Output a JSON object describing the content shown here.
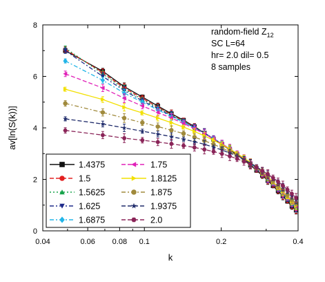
{
  "chart_data": {
    "type": "line",
    "title": "",
    "xlabel": "k",
    "ylabel": "av[ln(S(k))]",
    "xscale": "log",
    "xlim": [
      0.04,
      0.4
    ],
    "ylim": [
      0,
      8
    ],
    "x_ticks": [
      {
        "value": 0.04,
        "label": "0.04"
      },
      {
        "value": 0.06,
        "label": "0.06"
      },
      {
        "value": 0.08,
        "label": "0.08"
      },
      {
        "value": 0.1,
        "label": "0.1"
      },
      {
        "value": 0.2,
        "label": "0.2"
      },
      {
        "value": 0.4,
        "label": "0.4"
      }
    ],
    "y_ticks": [
      {
        "value": 0,
        "label": "0"
      },
      {
        "value": 2,
        "label": "2"
      },
      {
        "value": 4,
        "label": "4"
      },
      {
        "value": 6,
        "label": "6"
      },
      {
        "value": 8,
        "label": "8"
      }
    ],
    "annotations": {
      "line1": "random-field Z",
      "line1_sub": "12",
      "line2": "SC  L=64",
      "line3": "hr= 2.0  dil= 0.5",
      "line4": "8 samples"
    },
    "legend_position": "bottom-left",
    "grid": false,
    "x": [
      0.049,
      0.0687,
      0.0834,
      0.0982,
      0.1129,
      0.1276,
      0.1424,
      0.1571,
      0.1718,
      0.1866,
      0.2013,
      0.216,
      0.2307,
      0.2455,
      0.2602,
      0.2749,
      0.2897,
      0.3044,
      0.3191,
      0.3339,
      0.3486,
      0.3633,
      0.3781,
      0.3928
    ],
    "series": [
      {
        "name": "1.4375",
        "color": "#111111",
        "marker": "square",
        "dash": "solid",
        "values": [
          7.0,
          6.2,
          5.6,
          5.2,
          4.85,
          4.55,
          4.3,
          4.05,
          3.8,
          3.55,
          3.35,
          3.15,
          2.95,
          2.75,
          2.55,
          2.35,
          2.15,
          1.95,
          1.75,
          1.55,
          1.35,
          1.15,
          0.95,
          0.8
        ]
      },
      {
        "name": "1.5",
        "color": "#e32020",
        "marker": "circle",
        "dash": "dash",
        "values": [
          7.05,
          6.15,
          5.55,
          5.15,
          4.8,
          4.52,
          4.27,
          4.03,
          3.8,
          3.57,
          3.36,
          3.16,
          2.97,
          2.77,
          2.58,
          2.39,
          2.2,
          2.0,
          1.8,
          1.6,
          1.4,
          1.2,
          1.0,
          0.85
        ]
      },
      {
        "name": "1.5625",
        "color": "#16a34a",
        "marker": "triangle-up",
        "dash": "dot",
        "values": [
          7.1,
          6.1,
          5.5,
          5.1,
          4.78,
          4.5,
          4.26,
          4.02,
          3.8,
          3.58,
          3.37,
          3.17,
          2.98,
          2.79,
          2.6,
          2.41,
          2.22,
          2.03,
          1.83,
          1.63,
          1.43,
          1.23,
          1.03,
          0.88
        ]
      },
      {
        "name": "1.625",
        "color": "#1e2a8a",
        "marker": "triangle-down",
        "dash": "dashdot",
        "values": [
          7.0,
          6.0,
          5.45,
          5.05,
          4.74,
          4.47,
          4.24,
          4.01,
          3.8,
          3.59,
          3.38,
          3.18,
          2.99,
          2.8,
          2.61,
          2.42,
          2.23,
          2.04,
          1.85,
          1.65,
          1.45,
          1.25,
          1.05,
          0.9
        ]
      },
      {
        "name": "1.6875",
        "color": "#22b5e8",
        "marker": "diamond",
        "dash": "dashdot",
        "values": [
          6.6,
          5.85,
          5.35,
          5.0,
          4.7,
          4.44,
          4.22,
          4.0,
          3.79,
          3.58,
          3.38,
          3.19,
          3.0,
          2.81,
          2.62,
          2.43,
          2.24,
          2.05,
          1.86,
          1.66,
          1.46,
          1.27,
          1.07,
          0.92
        ]
      },
      {
        "name": "1.75",
        "color": "#e020b8",
        "marker": "triangle-left",
        "dash": "dash",
        "values": [
          6.1,
          5.55,
          5.15,
          4.85,
          4.6,
          4.38,
          4.17,
          3.97,
          3.77,
          3.57,
          3.38,
          3.19,
          3.0,
          2.82,
          2.63,
          2.44,
          2.25,
          2.06,
          1.87,
          1.68,
          1.48,
          1.29,
          1.09,
          0.95
        ]
      },
      {
        "name": "1.8125",
        "color": "#f2e000",
        "marker": "triangle-right",
        "dash": "solid",
        "values": [
          5.5,
          5.1,
          4.8,
          4.58,
          4.38,
          4.2,
          4.03,
          3.86,
          3.69,
          3.52,
          3.35,
          3.18,
          3.0,
          2.83,
          2.65,
          2.47,
          2.28,
          2.09,
          1.9,
          1.71,
          1.52,
          1.33,
          1.14,
          0.98
        ]
      },
      {
        "name": "1.875",
        "color": "#a08a3c",
        "marker": "circle",
        "dash": "dashdot",
        "values": [
          4.95,
          4.6,
          4.38,
          4.2,
          4.05,
          3.91,
          3.78,
          3.64,
          3.5,
          3.36,
          3.22,
          3.07,
          2.92,
          2.77,
          2.61,
          2.45,
          2.28,
          2.11,
          1.94,
          1.76,
          1.58,
          1.4,
          1.21,
          1.06
        ]
      },
      {
        "name": "1.9375",
        "color": "#1e2a6a",
        "marker": "star",
        "dash": "dash",
        "values": [
          4.35,
          4.15,
          4.0,
          3.87,
          3.76,
          3.66,
          3.56,
          3.46,
          3.36,
          3.25,
          3.14,
          3.02,
          2.9,
          2.77,
          2.63,
          2.49,
          2.34,
          2.19,
          2.03,
          1.87,
          1.7,
          1.53,
          1.35,
          1.2
        ]
      },
      {
        "name": "2.0",
        "color": "#8a2458",
        "marker": "hexagon",
        "dash": "dash",
        "values": [
          3.9,
          3.72,
          3.6,
          3.52,
          3.45,
          3.38,
          3.31,
          3.24,
          3.16,
          3.08,
          2.99,
          2.9,
          2.8,
          2.69,
          2.58,
          2.46,
          2.33,
          2.2,
          2.06,
          1.91,
          1.76,
          1.6,
          1.44,
          1.28
        ]
      }
    ]
  }
}
